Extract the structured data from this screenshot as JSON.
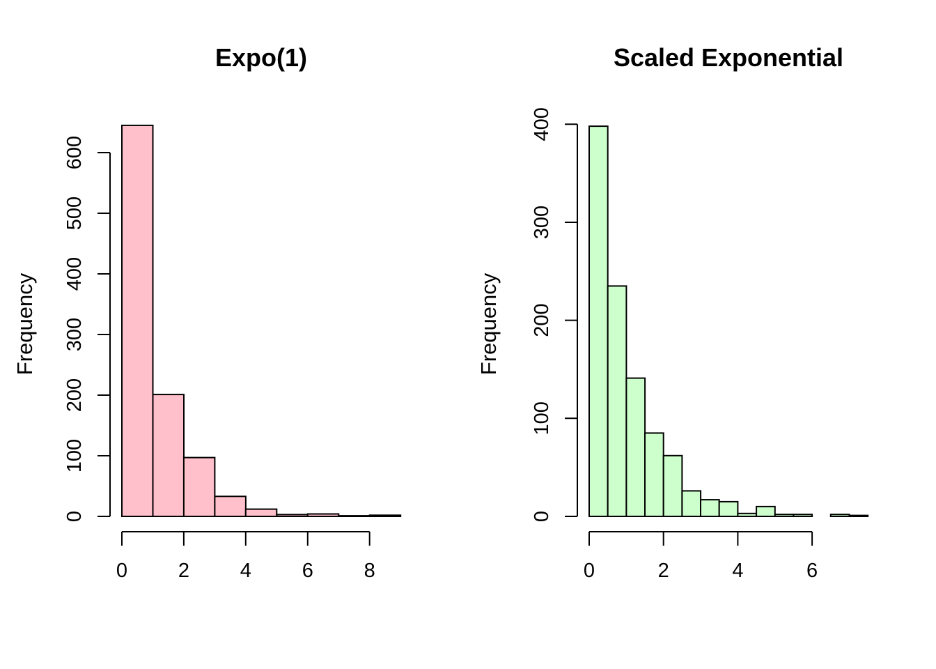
{
  "figure": {
    "background": "#ffffff",
    "line_color": "#000000"
  },
  "chart_data": [
    {
      "type": "bar",
      "subtype": "histogram",
      "title": "Expo(1)",
      "xlabel": "",
      "ylabel": "Frequency",
      "bin_edges": [
        0,
        1,
        2,
        3,
        4,
        5,
        6,
        7,
        8,
        9
      ],
      "counts": [
        645,
        201,
        97,
        33,
        12,
        3,
        4,
        1,
        2
      ],
      "xlim": [
        0,
        9
      ],
      "ylim": [
        0,
        600
      ],
      "x_ticks": [
        0,
        2,
        4,
        6,
        8
      ],
      "y_ticks": [
        0,
        100,
        200,
        300,
        400,
        500,
        600
      ],
      "bar_color": "#FFC0CB",
      "bar_border": "#000000",
      "grid": false,
      "legend": "none"
    },
    {
      "type": "bar",
      "subtype": "histogram",
      "title": "Scaled Exponential",
      "xlabel": "",
      "ylabel": "Frequency",
      "bin_edges": [
        0,
        0.5,
        1,
        1.5,
        2,
        2.5,
        3,
        3.5,
        4,
        4.5,
        5,
        5.5,
        6,
        6.5,
        7,
        7.5
      ],
      "counts": [
        398,
        235,
        141,
        85,
        62,
        26,
        17,
        15,
        3,
        10,
        2,
        2,
        0,
        2,
        1
      ],
      "xlim": [
        0,
        7.5
      ],
      "ylim": [
        0,
        400
      ],
      "x_ticks": [
        0,
        2,
        4,
        6
      ],
      "y_ticks": [
        0,
        100,
        200,
        300,
        400
      ],
      "bar_color": "#CCFFCC",
      "bar_border": "#000000",
      "grid": false,
      "legend": "none"
    }
  ]
}
